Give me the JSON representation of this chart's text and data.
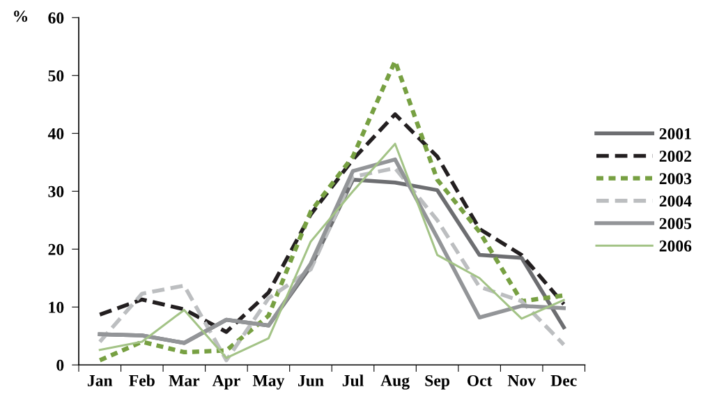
{
  "chart_data": {
    "type": "line",
    "ylabel": "%",
    "categories": [
      "Jan",
      "Feb",
      "Mar",
      "Apr",
      "May",
      "Jun",
      "Jul",
      "Aug",
      "Sep",
      "Oct",
      "Nov",
      "Dec"
    ],
    "ylim": [
      0,
      60
    ],
    "yticks": [
      0,
      10,
      20,
      30,
      40,
      50,
      60
    ],
    "grid": false,
    "legend": "right",
    "marker": "none",
    "series": [
      {
        "name": "2001",
        "color": "#6d6e71",
        "line_style": "solid",
        "values": [
          5.3,
          5.1,
          3.8,
          7.8,
          6.8,
          17,
          32,
          31.5,
          30.2,
          19,
          18.5,
          6.5
        ]
      },
      {
        "name": "2002",
        "color": "#231f20",
        "line_style": "dashed",
        "values": [
          8.7,
          11.3,
          9.6,
          5.7,
          12.5,
          26,
          35.5,
          43.3,
          36,
          23.5,
          19,
          10.5
        ]
      },
      {
        "name": "2003",
        "color": "#77a042",
        "line_style": "dotted",
        "values": [
          0.8,
          4,
          2.2,
          2.5,
          8.5,
          26.5,
          36,
          52.5,
          32,
          23,
          11,
          12
        ]
      },
      {
        "name": "2004",
        "color": "#bcbec0",
        "line_style": "dashed",
        "values": [
          4,
          12.3,
          13.7,
          0.8,
          11.5,
          16.5,
          32.5,
          34,
          25,
          13.5,
          11,
          3.5
        ]
      },
      {
        "name": "2005",
        "color": "#939598",
        "line_style": "solid",
        "values": [
          5.3,
          5.1,
          3.8,
          7.8,
          6.8,
          17.5,
          33.5,
          35.5,
          22,
          8.2,
          10.2,
          9.8
        ]
      },
      {
        "name": "2006",
        "color": "#a3c386",
        "line_style": "solid",
        "values": [
          2.6,
          4,
          9.5,
          1.2,
          4.6,
          21.3,
          30,
          38.2,
          19,
          15,
          8,
          11.2
        ]
      }
    ]
  }
}
